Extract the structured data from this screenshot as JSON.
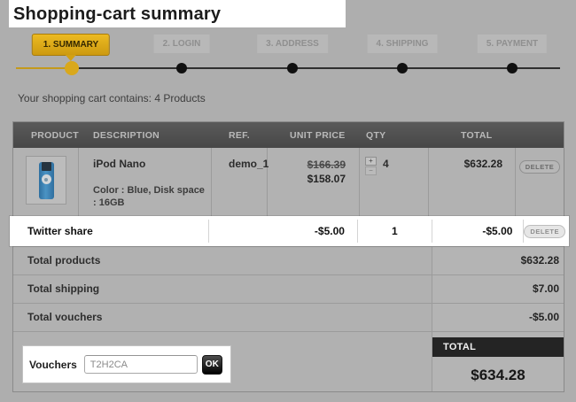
{
  "colors": {
    "accent_yellow": "#d6a414",
    "dim_background": "#aeaeae",
    "highlight_white": "#ffffff",
    "total_bar_black": "#242424"
  },
  "page": {
    "title": "Shopping-cart summary"
  },
  "steps": {
    "items": [
      {
        "label": "1. SUMMARY",
        "active": true
      },
      {
        "label": "2. LOGIN",
        "active": false
      },
      {
        "label": "3. ADDRESS",
        "active": false
      },
      {
        "label": "4. SHIPPING",
        "active": false
      },
      {
        "label": "5. PAYMENT",
        "active": false
      }
    ]
  },
  "cart_info": {
    "text": "Your shopping cart contains: 4 Products"
  },
  "icons": {
    "qty_increase": "+",
    "qty_decrease": "−"
  },
  "table": {
    "headers": {
      "product": "PRODUCT",
      "description": "DESCRIPTION",
      "ref": "REF.",
      "unit_price": "UNIT PRICE",
      "qty": "QTY",
      "total": "TOTAL"
    },
    "delete_label": "DELETE",
    "product_row": {
      "name": "iPod Nano",
      "attributes": "Color : Blue, Disk space : 16GB",
      "ref": "demo_1",
      "old_price": "$166.39",
      "price": "$158.07",
      "qty": "4",
      "total": "$632.28"
    },
    "discount_row": {
      "name": "Twitter share",
      "unit_price": "-$5.00",
      "qty": "1",
      "total": "-$5.00"
    },
    "totals": [
      {
        "label": "Total products",
        "value": "$632.28"
      },
      {
        "label": "Total shipping",
        "value": "$7.00"
      },
      {
        "label": "Total vouchers",
        "value": "-$5.00"
      }
    ],
    "voucher": {
      "label": "Vouchers",
      "value": "T2H2CA",
      "ok_label": "OK"
    },
    "grand_total": {
      "label": "TOTAL",
      "value": "$634.28"
    }
  }
}
